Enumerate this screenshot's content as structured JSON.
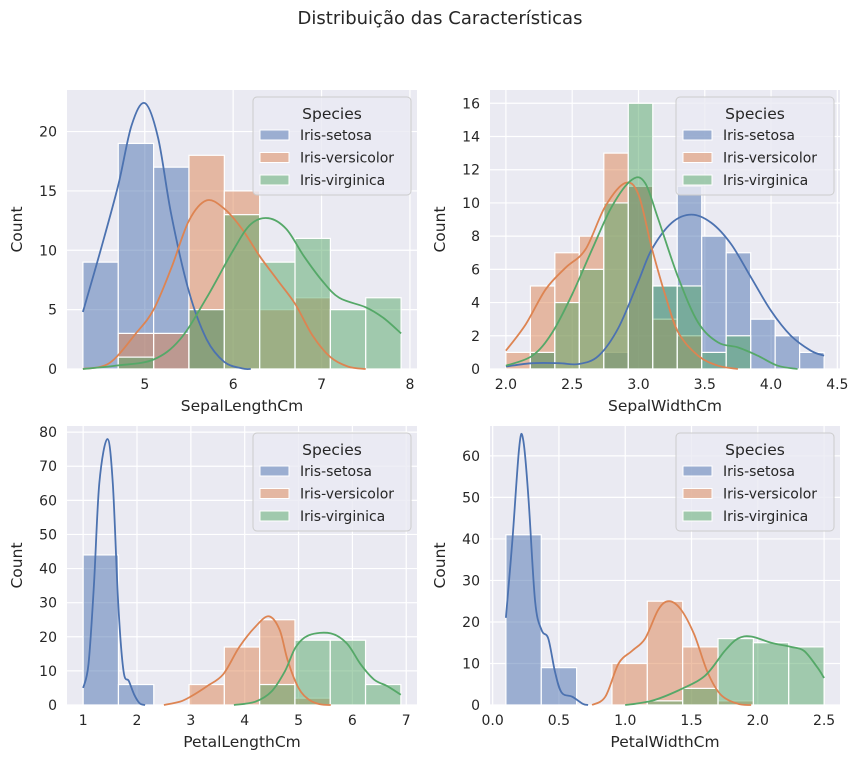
{
  "figure_title": "Distribuição das Características",
  "colors": {
    "background": "#eaeaf2",
    "grid": "#ffffff",
    "Iris-setosa": "#4c72b0",
    "Iris-versicolor": "#dd8452",
    "Iris-virginica": "#55a868"
  },
  "chart_data": [
    {
      "type": "bar",
      "subtype": "histogram+kde",
      "xlabel": "SepalLengthCm",
      "ylabel": "Count",
      "xlim": [
        4.12,
        8.08
      ],
      "ylim": [
        0,
        23.5
      ],
      "xticks": [
        "5",
        "6",
        "7",
        "8"
      ],
      "xtick_values": [
        5,
        6,
        7,
        8
      ],
      "yticks": [
        "0",
        "5",
        "10",
        "15",
        "20"
      ],
      "ytick_values": [
        0,
        5,
        10,
        15,
        20
      ],
      "grid": true,
      "legend": {
        "title": "Species",
        "placement": "top-right",
        "entries": [
          "Iris-setosa",
          "Iris-versicolor",
          "Iris-virginica"
        ]
      },
      "bin_edges": [
        4.3,
        4.7,
        5.1,
        5.5,
        5.9,
        6.3,
        6.7,
        7.1,
        7.5,
        7.9
      ],
      "series": [
        {
          "name": "Iris-setosa",
          "counts": [
            9,
            19,
            17,
            5,
            0,
            0,
            0,
            0,
            0
          ],
          "kde": [
            [
              4.3,
              4.8
            ],
            [
              4.5,
              10
            ],
            [
              4.7,
              15.5
            ],
            [
              4.85,
              20.5
            ],
            [
              5.0,
              22.4
            ],
            [
              5.15,
              19.5
            ],
            [
              5.3,
              13
            ],
            [
              5.5,
              6.5
            ],
            [
              5.7,
              2.5
            ],
            [
              5.9,
              0.6
            ],
            [
              6.1,
              0.05
            ],
            [
              6.2,
              0
            ]
          ]
        },
        {
          "name": "Iris-versicolor",
          "counts": [
            0,
            3,
            3,
            18,
            15,
            5,
            6,
            0,
            0
          ],
          "kde": [
            [
              4.3,
              0
            ],
            [
              4.6,
              0.5
            ],
            [
              4.9,
              3
            ],
            [
              5.1,
              5
            ],
            [
              5.3,
              8.5
            ],
            [
              5.5,
              12.5
            ],
            [
              5.7,
              14.2
            ],
            [
              5.9,
              13.5
            ],
            [
              6.1,
              11.8
            ],
            [
              6.3,
              9.5
            ],
            [
              6.5,
              7.5
            ],
            [
              6.7,
              5.5
            ],
            [
              6.9,
              2.8
            ],
            [
              7.1,
              1
            ],
            [
              7.3,
              0.2
            ],
            [
              7.5,
              0
            ]
          ]
        },
        {
          "name": "Iris-virginica",
          "counts": [
            0,
            1,
            0,
            5,
            13,
            9,
            11,
            5,
            6
          ],
          "kde": [
            [
              4.3,
              0
            ],
            [
              4.7,
              0.3
            ],
            [
              5.1,
              0.8
            ],
            [
              5.4,
              2.5
            ],
            [
              5.7,
              6
            ],
            [
              6.0,
              10
            ],
            [
              6.2,
              12.2
            ],
            [
              6.4,
              12.7
            ],
            [
              6.6,
              11.8
            ],
            [
              6.8,
              9.5
            ],
            [
              7.0,
              7.5
            ],
            [
              7.2,
              6
            ],
            [
              7.5,
              5.2
            ],
            [
              7.7,
              4.3
            ],
            [
              7.9,
              3
            ]
          ]
        }
      ]
    },
    {
      "type": "bar",
      "subtype": "histogram+kde",
      "xlabel": "SepalWidthCm",
      "ylabel": "Count",
      "xlim": [
        1.88,
        4.52
      ],
      "ylim": [
        0,
        16.8
      ],
      "xticks": [
        "2.0",
        "2.5",
        "3.0",
        "3.5",
        "4.0",
        "4.5"
      ],
      "xtick_values": [
        2.0,
        2.5,
        3.0,
        3.5,
        4.0,
        4.5
      ],
      "yticks": [
        "0",
        "2",
        "4",
        "6",
        "8",
        "10",
        "12",
        "14",
        "16"
      ],
      "ytick_values": [
        0,
        2,
        4,
        6,
        8,
        10,
        12,
        14,
        16
      ],
      "grid": true,
      "legend": {
        "title": "Species",
        "placement": "top-right",
        "entries": [
          "Iris-setosa",
          "Iris-versicolor",
          "Iris-virginica"
        ]
      },
      "bin_edges": [
        2.0,
        2.1846,
        2.3692,
        2.5538,
        2.7385,
        2.9231,
        3.1077,
        3.2923,
        3.4769,
        3.6615,
        3.8462,
        4.0308,
        4.2154,
        4.4
      ],
      "series": [
        {
          "name": "Iris-setosa",
          "counts": [
            0,
            1,
            0,
            0,
            1,
            11,
            5,
            11,
            8,
            7,
            3,
            2,
            1
          ],
          "kde": [
            [
              2.0,
              0.15
            ],
            [
              2.2,
              0.35
            ],
            [
              2.4,
              0.35
            ],
            [
              2.55,
              0.3
            ],
            [
              2.7,
              0.8
            ],
            [
              2.85,
              2.5
            ],
            [
              3.0,
              5.3
            ],
            [
              3.1,
              7.2
            ],
            [
              3.25,
              8.8
            ],
            [
              3.4,
              9.3
            ],
            [
              3.55,
              8.8
            ],
            [
              3.7,
              7.5
            ],
            [
              3.85,
              5.5
            ],
            [
              4.0,
              3.5
            ],
            [
              4.15,
              2
            ],
            [
              4.3,
              1.1
            ],
            [
              4.4,
              0.8
            ]
          ]
        },
        {
          "name": "Iris-versicolor",
          "counts": [
            1,
            5,
            7,
            8,
            13,
            11,
            3,
            2,
            0,
            0,
            0,
            0,
            0
          ],
          "kde": [
            [
              2.0,
              1.1
            ],
            [
              2.15,
              2.7
            ],
            [
              2.3,
              4.8
            ],
            [
              2.45,
              6.1
            ],
            [
              2.6,
              7.2
            ],
            [
              2.75,
              9.8
            ],
            [
              2.9,
              11.2
            ],
            [
              3.0,
              10.5
            ],
            [
              3.1,
              7.3
            ],
            [
              3.2,
              4.5
            ],
            [
              3.3,
              2.2
            ],
            [
              3.45,
              0.8
            ],
            [
              3.6,
              0.2
            ],
            [
              3.75,
              0
            ]
          ]
        },
        {
          "name": "Iris-virginica",
          "counts": [
            0,
            1,
            4,
            6,
            10,
            16,
            5,
            5,
            1,
            2,
            0,
            0,
            0
          ],
          "kde": [
            [
              2.0,
              0.2
            ],
            [
              2.2,
              0.8
            ],
            [
              2.35,
              2.2
            ],
            [
              2.5,
              4.5
            ],
            [
              2.65,
              7.2
            ],
            [
              2.8,
              9.8
            ],
            [
              2.95,
              11.4
            ],
            [
              3.05,
              11.2
            ],
            [
              3.15,
              9
            ],
            [
              3.3,
              5.5
            ],
            [
              3.45,
              2.8
            ],
            [
              3.6,
              1.6
            ],
            [
              3.75,
              1.3
            ],
            [
              3.9,
              0.8
            ],
            [
              4.05,
              0.2
            ],
            [
              4.2,
              0
            ]
          ]
        }
      ]
    },
    {
      "type": "bar",
      "subtype": "histogram+kde",
      "xlabel": "PetalLengthCm",
      "ylabel": "Count",
      "xlim": [
        0.7,
        7.2
      ],
      "ylim": [
        0,
        81.8
      ],
      "xticks": [
        "1",
        "2",
        "3",
        "4",
        "5",
        "6",
        "7"
      ],
      "xtick_values": [
        1,
        2,
        3,
        4,
        5,
        6,
        7
      ],
      "yticks": [
        "0",
        "10",
        "20",
        "30",
        "40",
        "50",
        "60",
        "70",
        "80"
      ],
      "ytick_values": [
        0,
        10,
        20,
        30,
        40,
        50,
        60,
        70,
        80
      ],
      "grid": true,
      "legend": {
        "title": "Species",
        "placement": "top-right",
        "entries": [
          "Iris-setosa",
          "Iris-versicolor",
          "Iris-virginica"
        ]
      },
      "bin_edges": [
        1.0,
        1.6556,
        2.3111,
        2.9667,
        3.6222,
        4.2778,
        4.9333,
        5.5889,
        6.2444,
        6.9
      ],
      "series": [
        {
          "name": "Iris-setosa",
          "counts": [
            44,
            6,
            0,
            0,
            0,
            0,
            0,
            0,
            0
          ],
          "kde": [
            [
              1.0,
              5
            ],
            [
              1.1,
              12
            ],
            [
              1.2,
              35
            ],
            [
              1.3,
              65
            ],
            [
              1.45,
              78
            ],
            [
              1.55,
              65
            ],
            [
              1.65,
              30
            ],
            [
              1.75,
              10
            ],
            [
              1.85,
              7
            ],
            [
              1.95,
              3
            ],
            [
              2.05,
              0.5
            ],
            [
              2.15,
              0
            ]
          ]
        },
        {
          "name": "Iris-versicolor",
          "counts": [
            0,
            0,
            0,
            6,
            17,
            25,
            2,
            0,
            0
          ],
          "kde": [
            [
              2.5,
              0
            ],
            [
              2.8,
              1
            ],
            [
              3.0,
              2.5
            ],
            [
              3.3,
              5.5
            ],
            [
              3.6,
              9
            ],
            [
              3.9,
              17
            ],
            [
              4.2,
              23
            ],
            [
              4.45,
              26
            ],
            [
              4.65,
              22
            ],
            [
              4.8,
              13
            ],
            [
              5.0,
              5
            ],
            [
              5.2,
              1.5
            ],
            [
              5.4,
              0.2
            ],
            [
              5.6,
              0
            ]
          ]
        },
        {
          "name": "Iris-virginica",
          "counts": [
            0,
            0,
            0,
            0,
            0,
            6,
            19,
            19,
            6
          ],
          "kde": [
            [
              3.8,
              0
            ],
            [
              4.2,
              1
            ],
            [
              4.5,
              4
            ],
            [
              4.75,
              10
            ],
            [
              4.95,
              17
            ],
            [
              5.2,
              20.5
            ],
            [
              5.6,
              21
            ],
            [
              5.9,
              18
            ],
            [
              6.15,
              12
            ],
            [
              6.4,
              7.5
            ],
            [
              6.65,
              5.5
            ],
            [
              6.9,
              3
            ]
          ]
        }
      ]
    },
    {
      "type": "bar",
      "subtype": "histogram+kde",
      "xlabel": "PetalWidthCm",
      "ylabel": "Count",
      "xlim": [
        -0.02,
        2.62
      ],
      "ylim": [
        0,
        67.2
      ],
      "xticks": [
        "0.0",
        "0.5",
        "1.0",
        "1.5",
        "2.0",
        "2.5"
      ],
      "xtick_values": [
        0.0,
        0.5,
        1.0,
        1.5,
        2.0,
        2.5
      ],
      "yticks": [
        "0",
        "10",
        "20",
        "30",
        "40",
        "50",
        "60"
      ],
      "ytick_values": [
        0,
        10,
        20,
        30,
        40,
        50,
        60
      ],
      "grid": true,
      "legend": {
        "title": "Species",
        "placement": "top-right",
        "entries": [
          "Iris-setosa",
          "Iris-versicolor",
          "Iris-virginica"
        ]
      },
      "bin_edges": [
        0.1,
        0.3667,
        0.6333,
        0.9,
        1.1667,
        1.4333,
        1.7,
        1.9667,
        2.2333,
        2.5
      ],
      "series": [
        {
          "name": "Iris-setosa",
          "counts": [
            41,
            9,
            0,
            0,
            0,
            0,
            0,
            0,
            0
          ],
          "kde": [
            [
              0.1,
              21
            ],
            [
              0.15,
              40
            ],
            [
              0.2,
              62
            ],
            [
              0.23,
              64
            ],
            [
              0.27,
              50
            ],
            [
              0.32,
              25
            ],
            [
              0.37,
              18
            ],
            [
              0.42,
              16
            ],
            [
              0.47,
              8
            ],
            [
              0.52,
              3
            ],
            [
              0.6,
              2
            ],
            [
              0.68,
              0.3
            ],
            [
              0.72,
              0
            ]
          ]
        },
        {
          "name": "Iris-versicolor",
          "counts": [
            0,
            0,
            0,
            10,
            25,
            14,
            1,
            0,
            0
          ],
          "kde": [
            [
              0.75,
              0
            ],
            [
              0.85,
              2
            ],
            [
              0.95,
              10
            ],
            [
              1.05,
              13
            ],
            [
              1.15,
              16
            ],
            [
              1.25,
              23
            ],
            [
              1.33,
              25
            ],
            [
              1.42,
              23
            ],
            [
              1.52,
              17
            ],
            [
              1.62,
              8
            ],
            [
              1.72,
              2.5
            ],
            [
              1.85,
              0.3
            ],
            [
              1.95,
              0
            ]
          ]
        },
        {
          "name": "Iris-virginica",
          "counts": [
            0,
            0,
            0,
            0,
            1,
            4,
            16,
            15,
            14
          ],
          "kde": [
            [
              1.0,
              0
            ],
            [
              1.2,
              1
            ],
            [
              1.4,
              3.5
            ],
            [
              1.6,
              7
            ],
            [
              1.75,
              13
            ],
            [
              1.85,
              16
            ],
            [
              1.95,
              16.5
            ],
            [
              2.1,
              15
            ],
            [
              2.25,
              14
            ],
            [
              2.35,
              13
            ],
            [
              2.45,
              9
            ],
            [
              2.5,
              6.5
            ]
          ]
        }
      ]
    }
  ]
}
